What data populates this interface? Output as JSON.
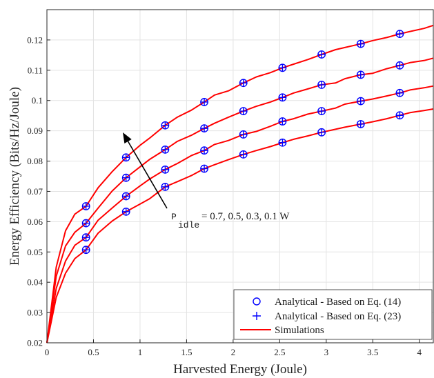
{
  "chart_data": {
    "type": "line",
    "title": "",
    "xlabel": "Harvested Energy (Joule)",
    "ylabel": "Energy Efficiency (Bits/Hz/Joule)",
    "xlim": [
      0,
      4.15
    ],
    "ylim": [
      0.02,
      0.13
    ],
    "xticks": [
      "0",
      "0.5",
      "1",
      "1.5",
      "2",
      "2.5",
      "3",
      "3.5",
      "4"
    ],
    "yticks": [
      "0.02",
      "0.03",
      "0.04",
      "0.05",
      "0.06",
      "0.07",
      "0.08",
      "0.09",
      "0.1",
      "0.11",
      "0.12"
    ],
    "grid": true,
    "legend_placement": "bottom-right",
    "colors": {
      "simulation": "#ff0000",
      "analytical": "#0000ff"
    },
    "legend": [
      {
        "label": "Analytical - Based on Eq. (14)",
        "marker": "circle"
      },
      {
        "label": "Analytical - Based on Eq. (23)",
        "marker": "plus"
      },
      {
        "label": "Simulations",
        "marker": "line"
      }
    ],
    "annotation": {
      "symbol": "P",
      "subscript": "idle",
      "text": "= 0.7, 0.5, 0.3, 0.1 W"
    },
    "x": [
      0,
      0.1,
      0.2,
      0.3,
      0.42,
      0.55,
      0.7,
      0.85,
      1.0,
      1.1,
      1.27,
      1.4,
      1.55,
      1.69,
      1.8,
      1.95,
      2.11,
      2.25,
      2.4,
      2.53,
      2.65,
      2.8,
      2.95,
      3.1,
      3.2,
      3.37,
      3.5,
      3.65,
      3.79,
      3.9,
      4.05,
      4.15
    ],
    "series": [
      {
        "values": [
          0.02,
          0.045,
          0.057,
          0.0625,
          0.0651,
          0.0712,
          0.0765,
          0.0812,
          0.0852,
          0.0875,
          0.0918,
          0.0945,
          0.0968,
          0.0995,
          0.1018,
          0.1032,
          0.1058,
          0.1078,
          0.1092,
          0.1108,
          0.112,
          0.1135,
          0.1152,
          0.1168,
          0.1175,
          0.1187,
          0.1198,
          0.1208,
          0.122,
          0.1228,
          0.1238,
          0.1248
        ]
      },
      {
        "values": [
          0.02,
          0.042,
          0.052,
          0.0565,
          0.0595,
          0.0645,
          0.0701,
          0.0745,
          0.0781,
          0.0805,
          0.0838,
          0.0865,
          0.0885,
          0.0908,
          0.0925,
          0.0945,
          0.0965,
          0.0981,
          0.0995,
          0.101,
          0.1025,
          0.1038,
          0.1052,
          0.1058,
          0.1072,
          0.1085,
          0.109,
          0.1105,
          0.1116,
          0.1125,
          0.1132,
          0.114
        ]
      },
      {
        "values": [
          0.02,
          0.038,
          0.047,
          0.0522,
          0.0548,
          0.0605,
          0.0645,
          0.0684,
          0.0718,
          0.074,
          0.0772,
          0.0792,
          0.0818,
          0.0835,
          0.0855,
          0.0868,
          0.0888,
          0.0898,
          0.0915,
          0.0931,
          0.094,
          0.0955,
          0.0965,
          0.0975,
          0.0988,
          0.0998,
          0.1005,
          0.1015,
          0.1025,
          0.1035,
          0.1042,
          0.1048
        ]
      },
      {
        "values": [
          0.02,
          0.035,
          0.043,
          0.0478,
          0.0507,
          0.0562,
          0.0602,
          0.0633,
          0.0658,
          0.0675,
          0.0715,
          0.0732,
          0.0752,
          0.0775,
          0.0788,
          0.0805,
          0.0822,
          0.0835,
          0.0848,
          0.0861,
          0.0872,
          0.0883,
          0.0895,
          0.0905,
          0.0912,
          0.0922,
          0.093,
          0.094,
          0.0951,
          0.096,
          0.0967,
          0.0972
        ]
      }
    ],
    "marker_x": [
      0.42,
      0.85,
      1.27,
      1.69,
      2.11,
      2.53,
      2.95,
      3.37,
      3.79
    ]
  }
}
